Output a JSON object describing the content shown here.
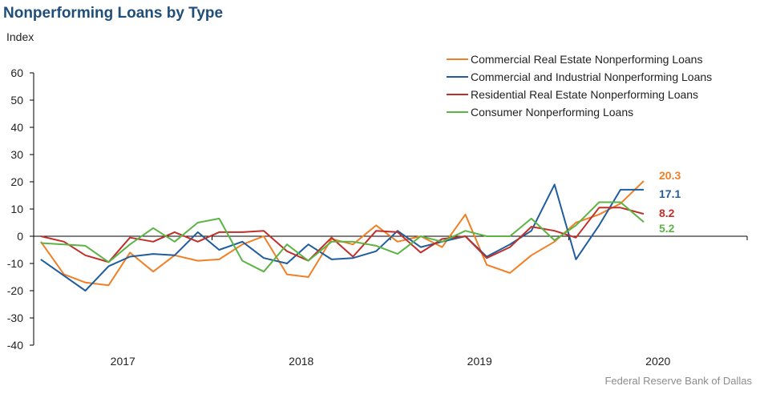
{
  "title": "Nonperforming Loans by Type",
  "y_unit_label": "Index",
  "source": "Federal Reserve Bank of Dallas",
  "chart_data": {
    "type": "line",
    "title": "Nonperforming Loans by Type",
    "ylabel": "Index",
    "ylim": [
      -40,
      60
    ],
    "yticks": [
      60,
      50,
      40,
      30,
      20,
      10,
      0,
      -10,
      -20,
      -30,
      -40
    ],
    "xlim": [
      2016.5,
      2020.5
    ],
    "xtick_labels": [
      "2017",
      "2018",
      "2019",
      "2020"
    ],
    "grid": false,
    "legend_position": "top-right",
    "series": [
      {
        "name": "Commercial Real Estate Nonperforming Loans",
        "color": "#f07f25",
        "end_label": "20.3",
        "x": [
          2016.54,
          2016.67,
          2016.79,
          2016.92,
          2017.04,
          2017.17,
          2017.29,
          2017.42,
          2017.54,
          2017.67,
          2017.79,
          2017.92,
          2018.04,
          2018.17,
          2018.29,
          2018.42,
          2018.54,
          2018.67,
          2018.79,
          2018.92,
          2019.04,
          2019.17,
          2019.29,
          2019.42,
          2019.54,
          2019.67,
          2019.79,
          2019.92
        ],
        "y": [
          -2.0,
          -14.0,
          -17.0,
          -18.0,
          -6.0,
          -13.0,
          -7.0,
          -9.0,
          -8.5,
          -3.0,
          0.0,
          -14.0,
          -15.0,
          -1.0,
          -3.0,
          4.0,
          -2.0,
          0.0,
          -4.0,
          8.0,
          -10.5,
          -13.5,
          -7.0,
          -2.0,
          5.0,
          8.0,
          12.0,
          20.3
        ]
      },
      {
        "name": "Commercial and Industrial Nonperforming Loans",
        "color": "#1f5d9e",
        "end_label": "17.1",
        "x": [
          2016.54,
          2016.79,
          2016.92,
          2017.04,
          2017.17,
          2017.29,
          2017.42,
          2017.54,
          2017.67,
          2017.79,
          2017.92,
          2018.04,
          2018.17,
          2018.29,
          2018.42,
          2018.54,
          2018.67,
          2018.79,
          2018.92,
          2019.04,
          2019.17,
          2019.29,
          2019.42,
          2019.54,
          2019.67,
          2019.79,
          2019.92
        ],
        "y": [
          -8.5,
          -20.0,
          -11.0,
          -7.5,
          -6.5,
          -7.0,
          1.5,
          -5.0,
          -2.0,
          -8.0,
          -10.0,
          -3.0,
          -8.5,
          -8.0,
          -5.5,
          2.0,
          -4.0,
          -2.0,
          0.0,
          -7.5,
          -3.0,
          2.0,
          19.0,
          -8.5,
          4.0,
          17.1,
          17.1
        ]
      },
      {
        "name": "Residential Real Estate Nonperforming Loans",
        "color": "#c0302a",
        "end_label": "8.2",
        "x": [
          2016.54,
          2016.67,
          2016.79,
          2016.92,
          2017.04,
          2017.17,
          2017.29,
          2017.42,
          2017.54,
          2017.67,
          2017.79,
          2017.92,
          2018.04,
          2018.17,
          2018.29,
          2018.42,
          2018.54,
          2018.67,
          2018.79,
          2018.92,
          2019.04,
          2019.17,
          2019.29,
          2019.42,
          2019.54,
          2019.67,
          2019.79,
          2019.92
        ],
        "y": [
          0.0,
          -2.0,
          -7.0,
          -9.5,
          -0.5,
          -2.0,
          1.5,
          -2.0,
          1.5,
          1.5,
          2.0,
          -5.5,
          -9.0,
          -0.5,
          -7.5,
          2.0,
          1.5,
          -6.0,
          -1.0,
          0.0,
          -8.0,
          -4.0,
          3.5,
          2.0,
          -0.5,
          10.5,
          10.5,
          8.2
        ]
      },
      {
        "name": "Consumer Nonperforming Loans",
        "color": "#5cb445",
        "end_label": "5.2",
        "x": [
          2016.54,
          2016.67,
          2016.79,
          2016.92,
          2017.04,
          2017.17,
          2017.29,
          2017.42,
          2017.54,
          2017.67,
          2017.79,
          2017.92,
          2018.04,
          2018.17,
          2018.29,
          2018.42,
          2018.54,
          2018.67,
          2018.79,
          2018.92,
          2019.04,
          2019.17,
          2019.29,
          2019.42,
          2019.54,
          2019.67,
          2019.79,
          2019.92
        ],
        "y": [
          -2.5,
          -3.0,
          -3.5,
          -9.5,
          -3.0,
          3.0,
          -2.0,
          5.0,
          6.5,
          -9.0,
          -13.0,
          -3.0,
          -9.0,
          -2.0,
          -2.0,
          -3.5,
          -6.5,
          0.0,
          -2.0,
          2.0,
          0.0,
          0.0,
          6.5,
          -1.5,
          4.0,
          12.5,
          12.5,
          5.2
        ]
      }
    ]
  }
}
